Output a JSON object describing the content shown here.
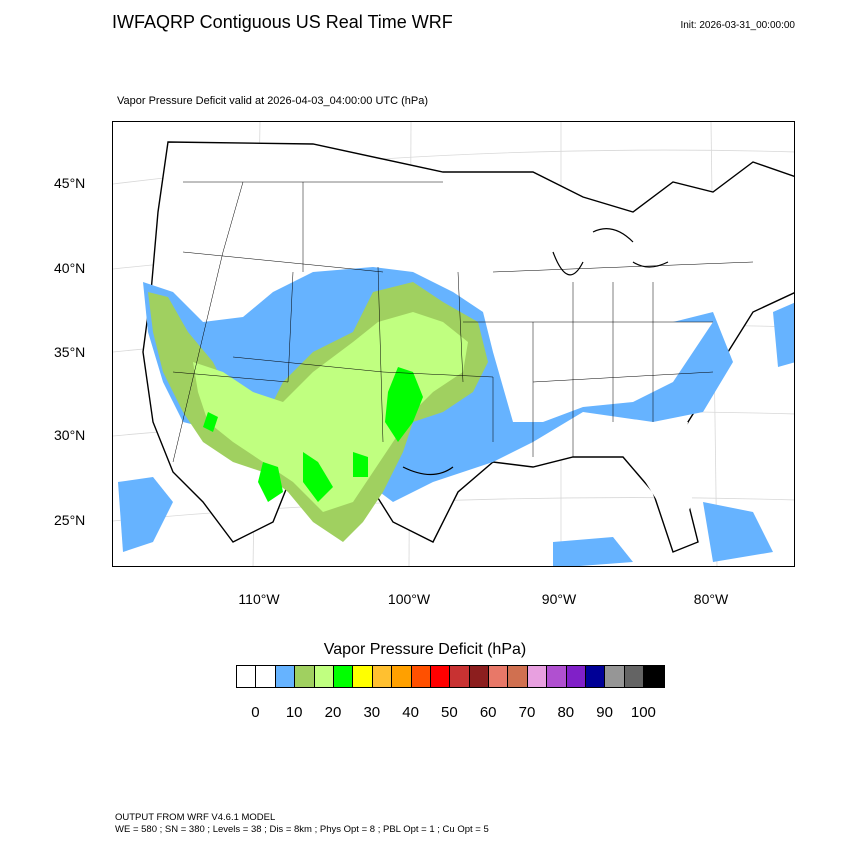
{
  "header": {
    "title": "IWFAQRP Contiguous US Real Time WRF",
    "init": "Init: 2026-03-31_00:00:00",
    "subtitle": "Vapor Pressure Deficit valid at 2026-04-03_04:00:00 UTC   (hPa)"
  },
  "map": {
    "lat_labels": [
      "45°N",
      "40°N",
      "35°N",
      "30°N",
      "25°N"
    ],
    "lon_labels": [
      "110°W",
      "100°W",
      "90°W",
      "80°W"
    ]
  },
  "colorbar": {
    "title": "Vapor Pressure Deficit  (hPa)",
    "colors": [
      "#ffffff",
      "#ffffff",
      "#66b3ff",
      "#a0d060",
      "#c0ff80",
      "#00ff00",
      "#ffff00",
      "#ffc030",
      "#ffa000",
      "#ff5000",
      "#ff0000",
      "#c83232",
      "#8c1e1e",
      "#e87868",
      "#d07050",
      "#e8a0e0",
      "#b050d0",
      "#8020c8",
      "#000096",
      "#969696",
      "#646464",
      "#000000"
    ],
    "tick_labels": [
      "0",
      "10",
      "20",
      "30",
      "40",
      "50",
      "60",
      "70",
      "80",
      "90",
      "100"
    ]
  },
  "footer": {
    "line1": "OUTPUT FROM WRF V4.6.1 MODEL",
    "line2": "WE = 580 ; SN = 380 ; Levels = 38 ; Dis = 8km ; Phys Opt = 8 ; PBL Opt = 1 ; Cu Opt = 5"
  }
}
